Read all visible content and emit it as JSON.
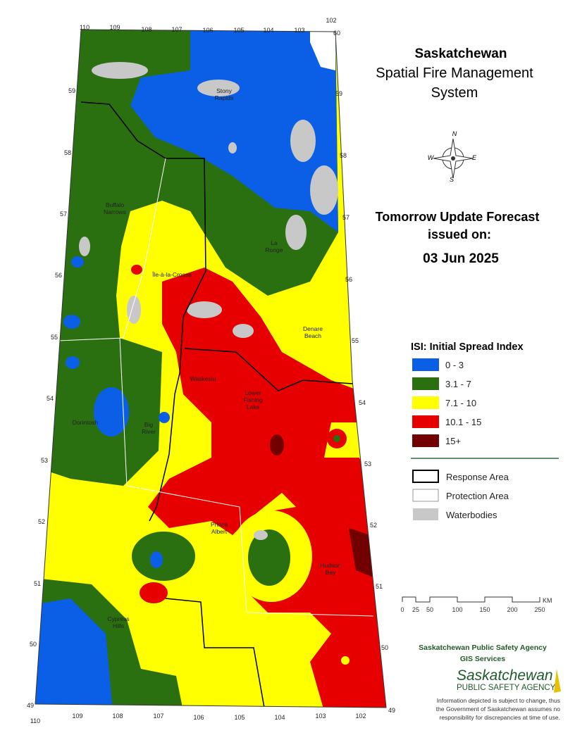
{
  "title": {
    "lines": [
      "Saskatchewan",
      "Spatial Fire Management",
      "System"
    ]
  },
  "forecast": {
    "heading": "Tomorrow Update Forecast",
    "issued": "issued on:",
    "date": "03 Jun 2025"
  },
  "legend": {
    "title": "ISI: Initial Spread Index",
    "classes": [
      {
        "label": "0 - 3",
        "color": "#0a5fe6"
      },
      {
        "label": "3.1 - 7",
        "color": "#2a7010"
      },
      {
        "label": "7.1 - 10",
        "color": "#ffff00"
      },
      {
        "label": "10.1 - 15",
        "color": "#e60000"
      },
      {
        "label": "15+",
        "color": "#730000"
      }
    ],
    "boundaries": [
      "Response Area",
      "Protection Area",
      "Waterbodies"
    ]
  },
  "compass": [
    "N",
    "E",
    "S",
    "W"
  ],
  "scale": {
    "ticks": [
      "0",
      "25",
      "50",
      "100",
      "150",
      "200",
      "250"
    ],
    "unit": "KM"
  },
  "places": [
    [
      "Stony",
      "Rapids"
    ],
    [
      "Buffalo",
      "Narrows"
    ],
    [
      "La",
      "Ronge"
    ],
    [
      "Île-à-la-Crosse"
    ],
    [
      "Denare",
      "Beach"
    ],
    [
      "Waskesiu"
    ],
    [
      "Lower",
      "Fishing",
      "Lake"
    ],
    [
      "Dorintosh"
    ],
    [
      "Big",
      "River"
    ],
    [
      "Prince",
      "Albert"
    ],
    [
      "Hudson",
      "Bay"
    ],
    [
      "Cypress",
      "Hills"
    ]
  ],
  "longitudes_top": [
    "110",
    "109",
    "108",
    "107",
    "106",
    "105",
    "104",
    "103",
    "102"
  ],
  "longitudes_bottom": [
    "110",
    "109",
    "108",
    "107",
    "106",
    "105",
    "104",
    "103",
    "102"
  ],
  "latitudes_left": [
    "59",
    "58",
    "57",
    "56",
    "55",
    "54",
    "53",
    "52",
    "51",
    "50",
    "49"
  ],
  "latitudes_right": [
    "60",
    "59",
    "58",
    "57",
    "56",
    "55",
    "54",
    "53",
    "52",
    "51",
    "50",
    "49"
  ],
  "credits": {
    "agency": "Saskatchewan Public Safety Agency",
    "unit": "GIS  Services",
    "logo_name": "Saskatchewan",
    "logo_sub": "PUBLIC SAFETY AGENCY",
    "disclaimer": [
      "Information depicted is subject to change, thus",
      "the Government of Saskatchewan assumes no",
      "responsibility for discrepancies at time of use."
    ]
  }
}
